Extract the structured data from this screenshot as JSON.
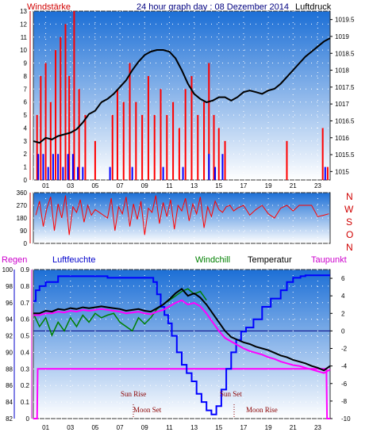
{
  "header": {
    "left": "Windstärke",
    "center": "24 hour graph day : 08 Dezember 2014",
    "right": "Luftdruck"
  },
  "lower_header": {
    "regen": "Regen",
    "luftfeuchte": "Luftfeuchte",
    "windchill": "Windchill",
    "temperatur": "Temperatur",
    "taupunkt": "Taupunkt"
  },
  "directions": [
    "N",
    "W",
    "S",
    "O",
    "N"
  ],
  "annotations": {
    "sun_rise": "Sun Rise",
    "sun_set": "Sun Set",
    "moon_set": "Moon Set",
    "moon_rise": "Moon Rise"
  },
  "colors": {
    "wind": "#ff0000",
    "gust": "#0000ff",
    "pressure": "#000000",
    "regen": "#ff00ff",
    "luftfeuchte": "#0000ff",
    "windchill": "#008000",
    "temperatur": "#000000",
    "taupunkt": "#ff00ff",
    "sky_top": "#1c6fd6",
    "sky_bottom": "#ffffff"
  },
  "chart_data": [
    {
      "type": "line",
      "title": "24 hour graph day : 08 Dezember 2014",
      "x_ticks": [
        "01",
        "03",
        "05",
        "07",
        "09",
        "11",
        "13",
        "15",
        "17",
        "19",
        "21",
        "23"
      ],
      "xlim": [
        0,
        24
      ],
      "y_left_label": "Windstärke",
      "y_left_ticks": [
        "0",
        "1",
        "2",
        "3",
        "4",
        "5",
        "6",
        "7",
        "8",
        "9",
        "10",
        "11",
        "12",
        "13"
      ],
      "y_left_lim": [
        0,
        13
      ],
      "y_right_label": "Luftdruck",
      "y_right_ticks": [
        "1015",
        "1015.5",
        "1016",
        "1016.5",
        "1017",
        "1017.5",
        "1018",
        "1018.5",
        "1019",
        "1019.5"
      ],
      "y_right_lim": [
        1014.75,
        1019.75
      ],
      "series": [
        {
          "name": "Luftdruck",
          "axis": "right",
          "x": [
            0,
            0.5,
            1,
            1.5,
            2,
            2.5,
            3,
            3.5,
            4,
            4.5,
            5,
            5.5,
            6,
            6.5,
            7,
            7.5,
            8,
            8.5,
            9,
            9.5,
            10,
            10.5,
            11,
            11.5,
            12,
            12.5,
            13,
            13.5,
            14,
            14.5,
            15,
            15.5,
            16,
            16.5,
            17,
            17.5,
            18,
            18.5,
            19,
            19.5,
            20,
            20.5,
            21,
            21.5,
            22,
            22.5,
            23,
            23.5,
            24
          ],
          "values": [
            1015.9,
            1015.85,
            1016.0,
            1015.95,
            1016.05,
            1016.1,
            1016.15,
            1016.25,
            1016.45,
            1016.7,
            1016.8,
            1017.05,
            1017.15,
            1017.3,
            1017.5,
            1017.7,
            1018.0,
            1018.25,
            1018.45,
            1018.55,
            1018.6,
            1018.6,
            1018.55,
            1018.35,
            1018.0,
            1017.6,
            1017.3,
            1017.15,
            1017.05,
            1017.1,
            1017.2,
            1017.2,
            1017.1,
            1017.2,
            1017.35,
            1017.4,
            1017.35,
            1017.3,
            1017.4,
            1017.45,
            1017.6,
            1017.8,
            1018.0,
            1018.2,
            1018.4,
            1018.55,
            1018.7,
            1018.85,
            1018.95
          ]
        },
        {
          "name": "Wind",
          "axis": "left",
          "x": [
            0.3,
            0.6,
            1.0,
            1.4,
            1.8,
            2.2,
            2.6,
            2.9,
            3.3,
            3.7,
            4.2,
            5.0,
            6.0,
            6.4,
            6.8,
            7.3,
            7.8,
            8.3,
            8.8,
            9.3,
            9.8,
            10.3,
            10.8,
            11.3,
            11.8,
            12.3,
            12.8,
            13.3,
            13.8,
            14.2,
            14.6,
            15.0,
            15.5,
            16.0,
            17.0,
            18.0,
            19.0,
            20.0,
            20.5,
            21.0,
            22.0,
            23.0,
            23.4,
            23.8
          ],
          "values": [
            5,
            8,
            9,
            6,
            10,
            11,
            12,
            8,
            13,
            7,
            5,
            3,
            0,
            5,
            7,
            6,
            9,
            6,
            5,
            8,
            5,
            7,
            5,
            6,
            4,
            7,
            8,
            5,
            6,
            9,
            5,
            4,
            3,
            0,
            0,
            0,
            0,
            0,
            3,
            0,
            0,
            0,
            4,
            1
          ]
        },
        {
          "name": "Böen",
          "axis": "left",
          "x": [
            0.4,
            0.8,
            1.2,
            1.6,
            2.0,
            2.4,
            2.8,
            3.2,
            3.6,
            4.0,
            6.2,
            8.0,
            10.5,
            12.1,
            14.2,
            14.7,
            15.3,
            23.6
          ],
          "values": [
            2,
            2,
            1,
            2,
            2,
            1,
            2,
            2,
            1,
            1,
            1,
            1,
            1,
            1,
            2,
            1,
            2,
            1
          ]
        }
      ]
    },
    {
      "type": "line",
      "y_left_ticks": [
        "0",
        "90",
        "180",
        "270",
        "360"
      ],
      "y_left_lim": [
        0,
        360
      ],
      "series": [
        {
          "name": "Windrichtung",
          "x": [
            0.2,
            0.5,
            0.8,
            1.1,
            1.4,
            1.7,
            2.0,
            2.3,
            2.6,
            2.9,
            3.2,
            3.5,
            3.8,
            4.1,
            4.4,
            4.7,
            5.0,
            6.0,
            6.3,
            6.6,
            6.9,
            7.2,
            7.5,
            7.8,
            8.1,
            8.4,
            8.7,
            9.0,
            9.3,
            9.6,
            9.9,
            10.2,
            10.5,
            10.8,
            11.1,
            11.4,
            11.7,
            12.0,
            12.3,
            12.6,
            12.9,
            13.2,
            13.5,
            13.8,
            14.1,
            14.4,
            14.7,
            15.0,
            15.3,
            15.6,
            15.9,
            16.2,
            16.5,
            17.0,
            17.5,
            18.0,
            18.5,
            19.0,
            19.5,
            20.0,
            20.5,
            21.0,
            21.5,
            22.0,
            22.5,
            23.0,
            23.5,
            23.9
          ],
          "values": [
            200,
            300,
            120,
            250,
            330,
            90,
            280,
            180,
            340,
            60,
            260,
            220,
            310,
            150,
            270,
            200,
            240,
            180,
            320,
            90,
            260,
            210,
            330,
            120,
            280,
            170,
            300,
            60,
            250,
            220,
            340,
            140,
            290,
            190,
            310,
            100,
            270,
            230,
            320,
            160,
            280,
            210,
            330,
            110,
            260,
            190,
            300,
            240,
            220,
            260,
            270,
            230,
            250,
            270,
            200,
            240,
            270,
            210,
            180,
            250,
            270,
            230,
            270,
            270,
            270,
            190,
            200,
            210
          ]
        }
      ]
    },
    {
      "type": "line",
      "xlim": [
        0,
        24
      ],
      "x_ticks": [
        "01",
        "03",
        "05",
        "07",
        "09",
        "11",
        "13",
        "15",
        "17",
        "19",
        "21",
        "23"
      ],
      "y_regen_ticks": [
        "0",
        "0.1",
        "0.2",
        "0.3",
        "0.4",
        "0.5",
        "0.6",
        "0.7",
        "0.8",
        "0.9"
      ],
      "y_regen_lim": [
        0,
        0.9
      ],
      "y_hum_ticks": [
        "82",
        "84",
        "86",
        "88",
        "90",
        "92",
        "94",
        "96",
        "98",
        "100"
      ],
      "y_hum_lim": [
        82,
        100
      ],
      "y_temp_ticks": [
        "-10",
        "-8",
        "-6",
        "-4",
        "-2",
        "0",
        "2",
        "4",
        "6"
      ],
      "y_temp_lim": [
        -10,
        7
      ],
      "series": [
        {
          "name": "Regen",
          "axis": "regen",
          "x": [
            0,
            0.3,
            0.35,
            23.7,
            23.75,
            24
          ],
          "values": [
            0,
            0,
            0.3,
            0.3,
            0,
            0
          ]
        },
        {
          "name": "Luftfeuchte",
          "axis": "hum",
          "x": [
            0,
            0.2,
            0.5,
            1.0,
            2.0,
            4.0,
            5.5,
            6.0,
            8.0,
            9.0,
            9.7,
            10.0,
            10.3,
            10.6,
            10.9,
            11.2,
            11.6,
            12.0,
            12.4,
            12.8,
            13.2,
            13.6,
            14.0,
            14.4,
            14.8,
            15.2,
            15.6,
            16.0,
            16.4,
            16.8,
            17.2,
            17.8,
            18.5,
            19.2,
            20.0,
            20.5,
            21.0,
            21.6,
            22.0,
            23.0,
            24.0
          ],
          "values": [
            96.2,
            97.5,
            98.0,
            98.5,
            99.2,
            99.2,
            99.2,
            99.0,
            99.0,
            99.0,
            98.5,
            97.0,
            95.5,
            94.5,
            93.5,
            92.0,
            90.0,
            88.5,
            87.5,
            86.5,
            85.0,
            84.0,
            83.0,
            82.5,
            83.5,
            85.5,
            88.0,
            90.0,
            91.5,
            92.5,
            93.0,
            94.0,
            95.5,
            96.5,
            97.5,
            98.5,
            99.0,
            99.2,
            99.3,
            99.3,
            99.3
          ]
        },
        {
          "name": "Windchill",
          "axis": "temp",
          "x": [
            0,
            0.5,
            1.0,
            1.5,
            2.0,
            2.5,
            3.0,
            3.5,
            4.0,
            4.5,
            5.0,
            5.5,
            6.0,
            6.5,
            7.0,
            7.5,
            8.0,
            8.5,
            9.0,
            9.5,
            10.0,
            10.5,
            11.0,
            11.5,
            12.0,
            12.5,
            13.0,
            13.5,
            14.0
          ],
          "values": [
            2.0,
            0.5,
            1.5,
            -0.5,
            1.0,
            0.0,
            1.5,
            0.5,
            1.8,
            1.0,
            2.0,
            1.5,
            1.8,
            2.0,
            1.0,
            0.5,
            0.0,
            1.5,
            0.8,
            1.5,
            2.5,
            3.0,
            3.5,
            4.0,
            4.5,
            4.8,
            4.2,
            4.5,
            3.5
          ]
        },
        {
          "name": "Temperatur",
          "axis": "temp",
          "x": [
            0,
            0.5,
            1.0,
            1.5,
            2.0,
            2.5,
            3.0,
            3.5,
            4.0,
            4.5,
            5.0,
            5.5,
            6.0,
            6.5,
            7.0,
            7.5,
            8.0,
            8.5,
            9.0,
            9.5,
            10.0,
            10.5,
            11.0,
            11.5,
            12.0,
            12.5,
            13.0,
            13.5,
            14.0,
            14.5,
            15.0,
            15.5,
            16.0,
            16.5,
            17.0,
            17.5,
            18.0,
            18.5,
            19.0,
            19.5,
            20.0,
            20.5,
            21.0,
            21.5,
            22.0,
            22.5,
            23.0,
            23.5,
            24.0
          ],
          "values": [
            2.0,
            2.0,
            2.3,
            2.2,
            2.5,
            2.4,
            2.6,
            2.5,
            2.7,
            2.6,
            2.7,
            2.8,
            2.7,
            2.6,
            2.5,
            2.3,
            2.4,
            2.5,
            2.3,
            2.2,
            2.6,
            3.0,
            3.6,
            4.3,
            4.8,
            4.0,
            4.3,
            3.8,
            3.0,
            2.0,
            1.0,
            0.0,
            -0.7,
            -1.0,
            -1.3,
            -1.5,
            -1.8,
            -2.0,
            -2.2,
            -2.5,
            -2.8,
            -3.0,
            -3.3,
            -3.5,
            -3.7,
            -4.0,
            -4.2,
            -4.5,
            -4.0
          ]
        },
        {
          "name": "Taupunkt",
          "axis": "temp",
          "x": [
            0,
            0.5,
            1.0,
            1.5,
            2.0,
            2.5,
            3.0,
            3.5,
            4.0,
            4.5,
            5.0,
            5.5,
            6.0,
            6.5,
            7.0,
            7.5,
            8.0,
            8.5,
            9.0,
            9.5,
            10.0,
            10.5,
            11.0,
            11.5,
            12.0,
            12.5,
            13.0,
            13.5,
            14.0,
            14.5,
            15.0,
            15.5,
            16.0,
            16.5,
            17.0,
            17.5,
            18.0,
            18.5,
            19.0,
            19.5,
            20.0,
            20.5,
            21.0,
            21.5,
            22.0,
            22.5,
            23.0,
            23.5,
            24.0
          ],
          "values": [
            1.8,
            1.8,
            2.0,
            2.0,
            2.2,
            2.1,
            2.3,
            2.2,
            2.4,
            2.3,
            2.4,
            2.5,
            2.4,
            2.3,
            2.2,
            2.0,
            2.1,
            2.2,
            2.0,
            1.9,
            2.2,
            2.4,
            2.8,
            3.2,
            3.5,
            3.0,
            3.2,
            2.8,
            2.0,
            1.0,
            0.0,
            -0.8,
            -1.2,
            -1.6,
            -2.0,
            -2.3,
            -2.5,
            -2.7,
            -3.0,
            -3.2,
            -3.5,
            -3.7,
            -3.9,
            -4.0,
            -4.2,
            -4.4,
            -4.6,
            -4.8,
            -4.4
          ]
        }
      ]
    }
  ]
}
